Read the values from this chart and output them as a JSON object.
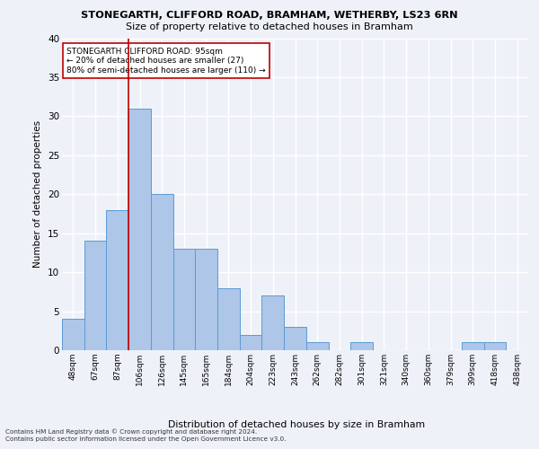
{
  "title1": "STONEGARTH, CLIFFORD ROAD, BRAMHAM, WETHERBY, LS23 6RN",
  "title2": "Size of property relative to detached houses in Bramham",
  "xlabel": "Distribution of detached houses by size in Bramham",
  "ylabel": "Number of detached properties",
  "categories": [
    "48sqm",
    "67sqm",
    "87sqm",
    "106sqm",
    "126sqm",
    "145sqm",
    "165sqm",
    "184sqm",
    "204sqm",
    "223sqm",
    "243sqm",
    "262sqm",
    "282sqm",
    "301sqm",
    "321sqm",
    "340sqm",
    "360sqm",
    "379sqm",
    "399sqm",
    "418sqm",
    "438sqm"
  ],
  "values": [
    4,
    14,
    18,
    31,
    20,
    13,
    13,
    8,
    2,
    7,
    3,
    1,
    0,
    1,
    0,
    0,
    0,
    0,
    1,
    1,
    0
  ],
  "bar_color": "#aec6e8",
  "bar_edge_color": "#5b9bd5",
  "vline_x": 2.5,
  "vline_color": "#c00000",
  "annotation_text": "STONEGARTH CLIFFORD ROAD: 95sqm\n← 20% of detached houses are smaller (27)\n80% of semi-detached houses are larger (110) →",
  "annotation_box_color": "#ffffff",
  "annotation_box_edge": "#c00000",
  "ylim": [
    0,
    40
  ],
  "yticks": [
    0,
    5,
    10,
    15,
    20,
    25,
    30,
    35,
    40
  ],
  "footer1": "Contains HM Land Registry data © Crown copyright and database right 2024.",
  "footer2": "Contains public sector information licensed under the Open Government Licence v3.0.",
  "bg_color": "#eef2f8",
  "grid_color": "#ffffff"
}
